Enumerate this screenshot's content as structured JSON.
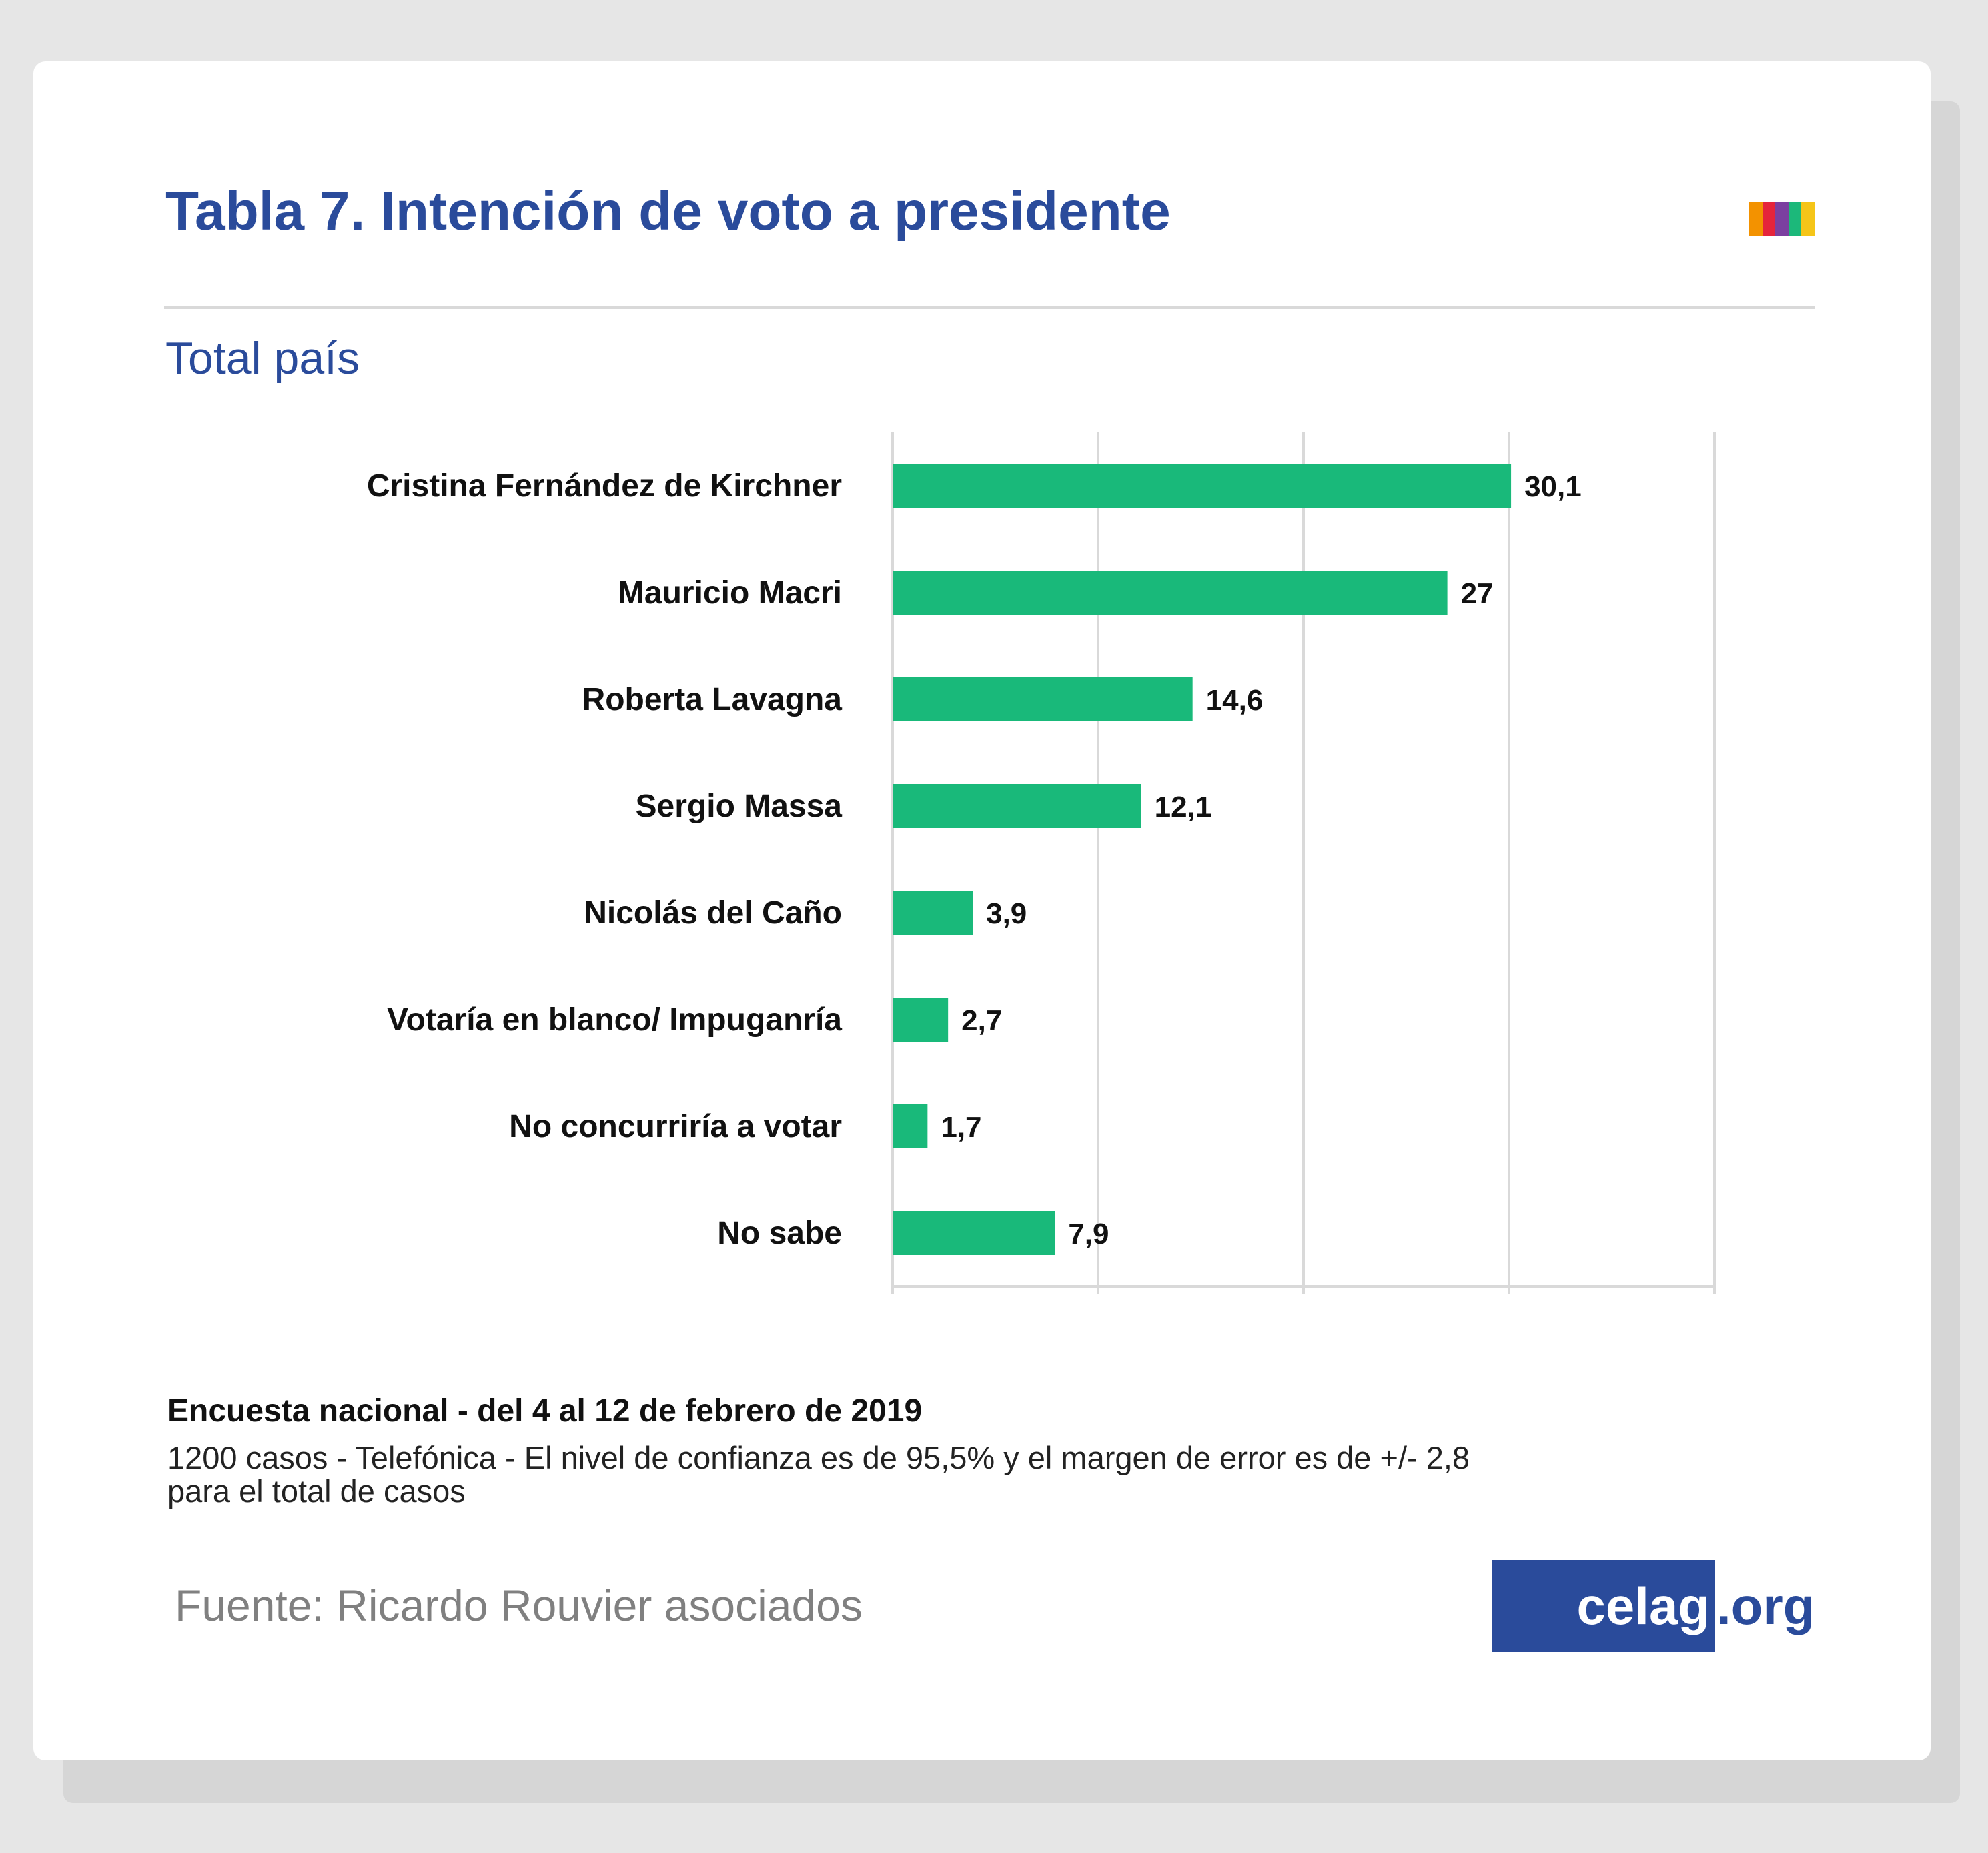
{
  "header": {
    "title": "Tabla 7. Intención de voto a presidente",
    "subtitle": "Total país",
    "logo_colors": [
      "#f39200",
      "#e5243b",
      "#7b3fa0",
      "#1cb87a",
      "#f5c518"
    ]
  },
  "chart_data": {
    "type": "bar",
    "orientation": "horizontal",
    "categories": [
      "Cristina Fernández de Kirchner",
      "Mauricio Macri",
      "Roberta Lavagna",
      "Sergio Massa",
      "Nicolás del Caño",
      "Votaría en blanco/ Impuganría",
      "No concurriría a votar",
      "No sabe"
    ],
    "values": [
      30.1,
      27,
      14.6,
      12.1,
      3.9,
      2.7,
      1.7,
      7.9
    ],
    "value_labels": [
      "30,1",
      "27",
      "14,6",
      "12,1",
      "3,9",
      "2,7",
      "1,7",
      "7,9"
    ],
    "xlim": [
      0,
      40
    ],
    "grid": true,
    "bar_color": "#19b97a"
  },
  "footer": {
    "survey": "Encuesta nacional - del 4 al 12 de febrero de 2019",
    "note": "1200 casos - Telefónica - El nivel de confianza es de 95,5% y el margen de error es de +/- 2,8 para el total de casos",
    "source": "Fuente: Ricardo Rouvier asociados",
    "brand_main": "celag",
    "brand_tail": ".org"
  }
}
